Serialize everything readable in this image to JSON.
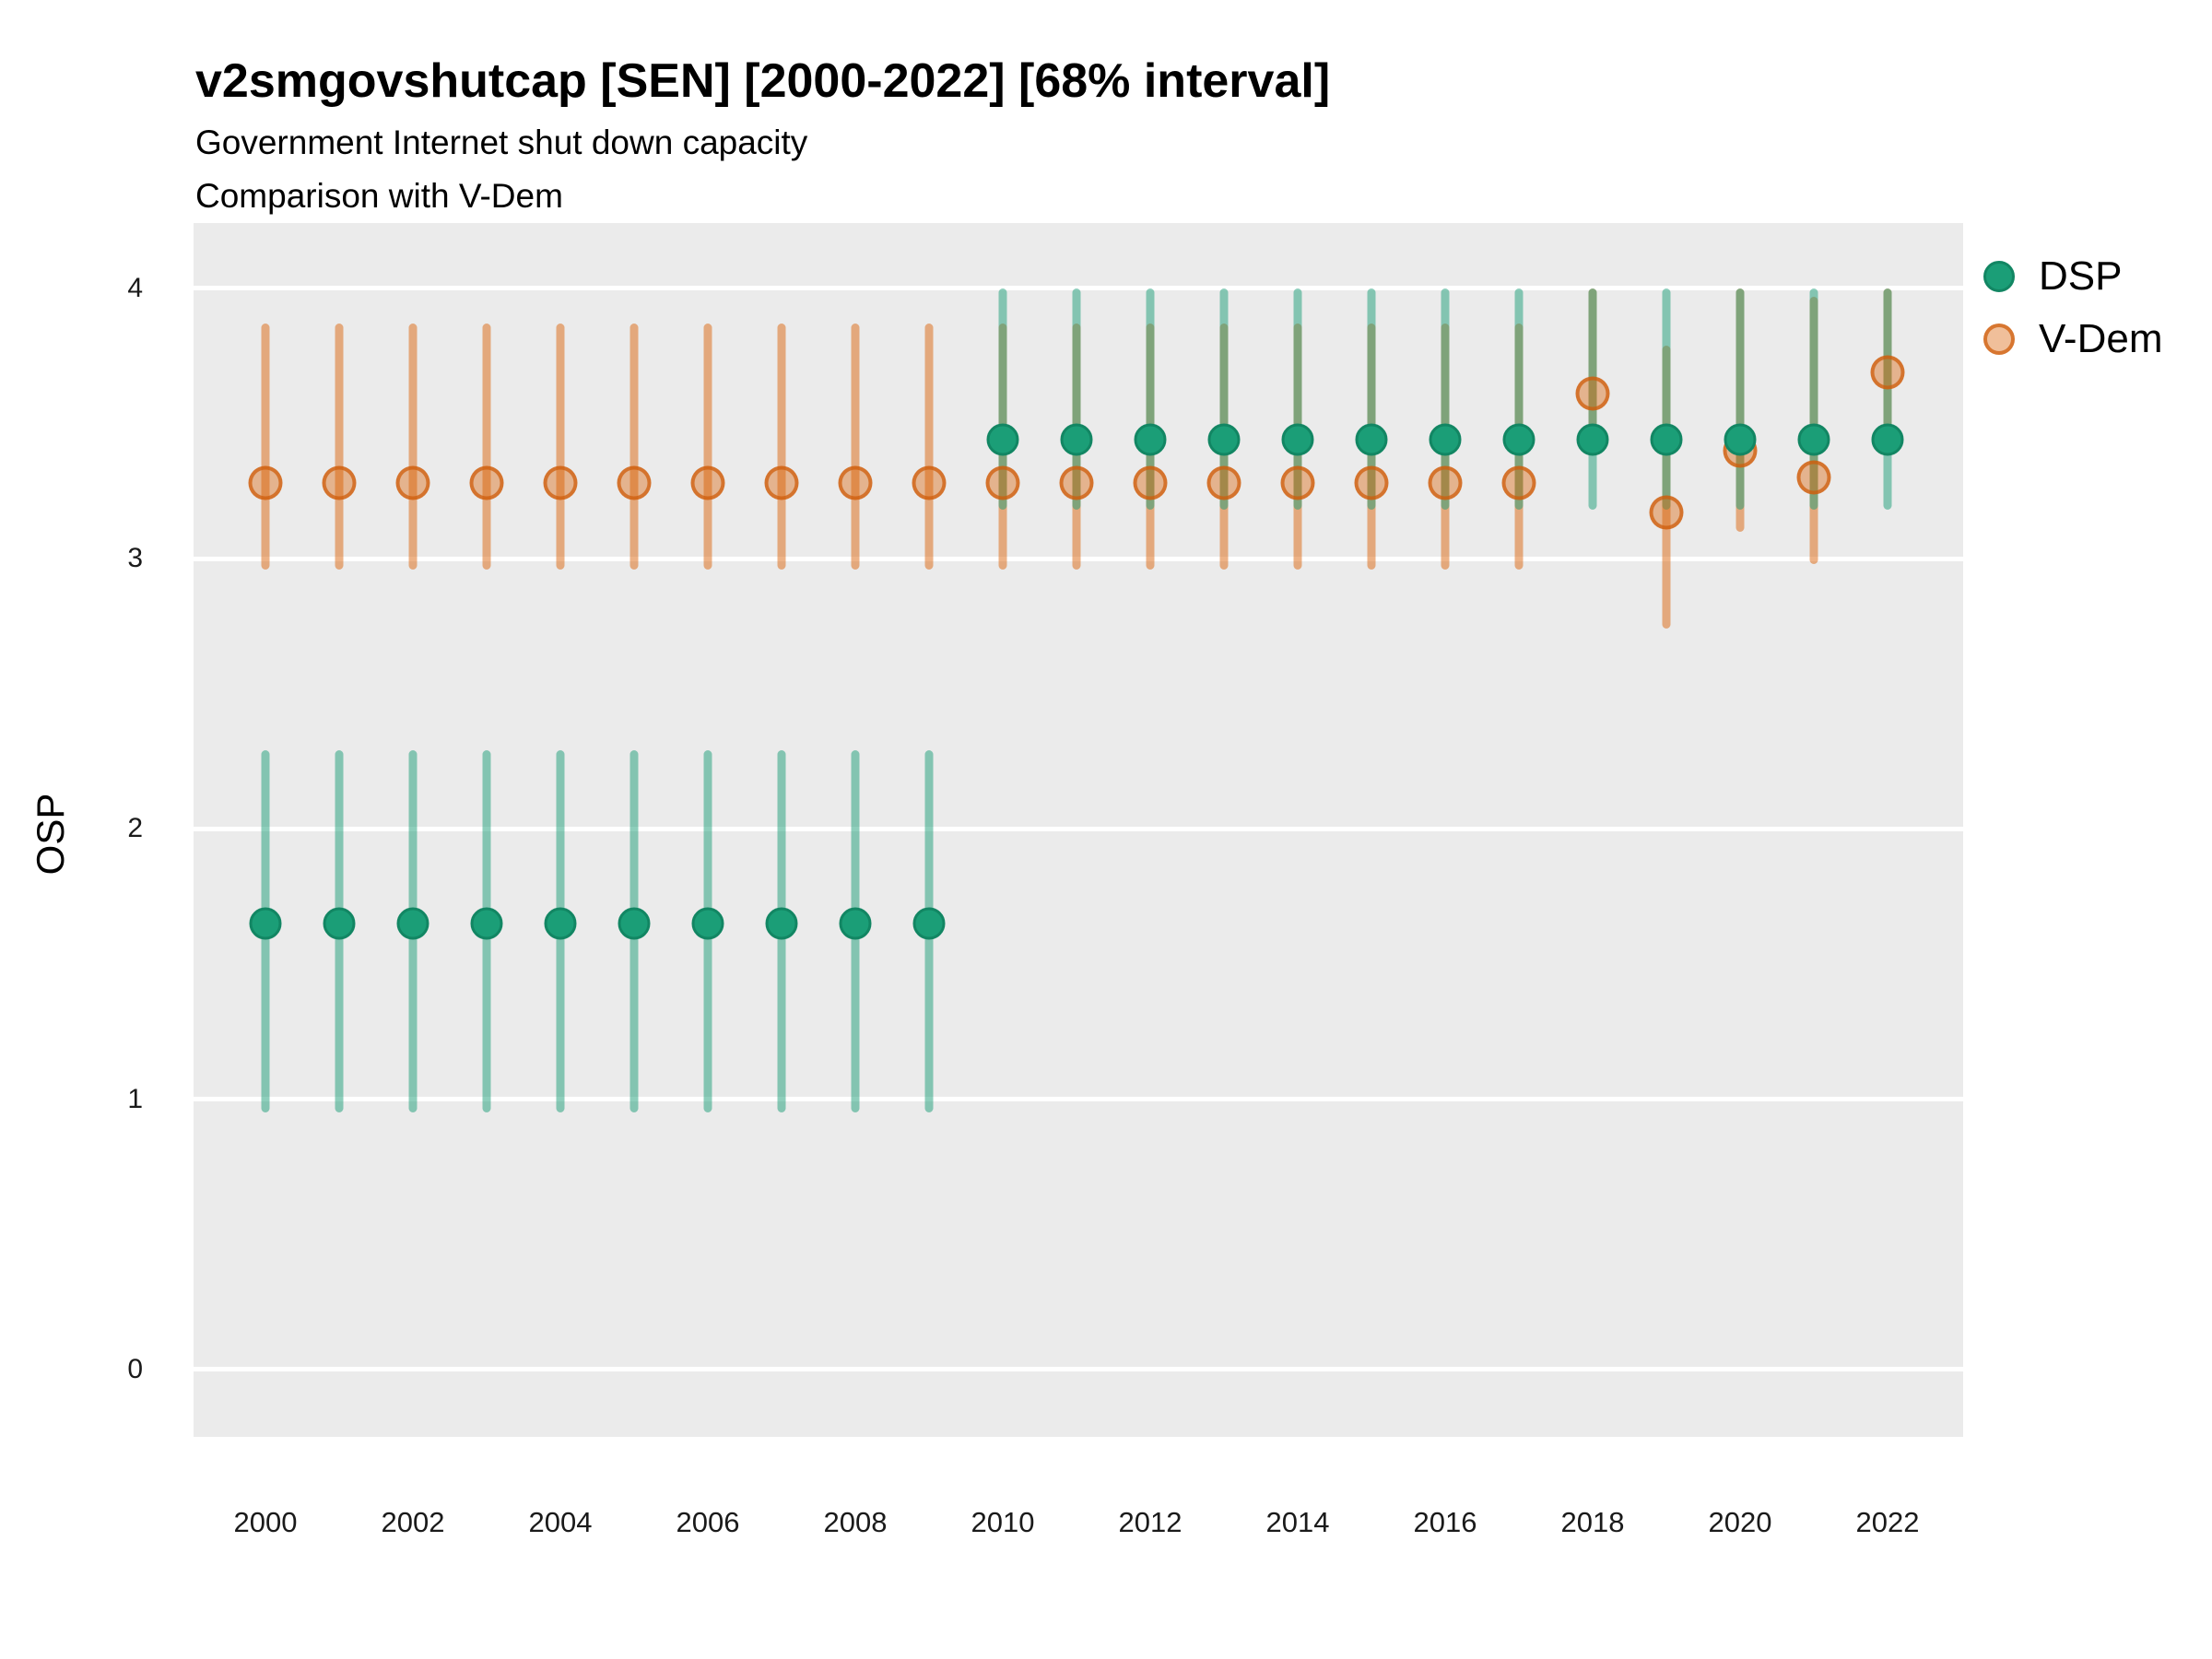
{
  "header": {
    "title": "v2smgovshutcap [SEN] [2000-2022] [68% interval]",
    "subtitle_line1": "Government Internet shut down capacity",
    "subtitle_line2": "Comparison with V-Dem"
  },
  "y_axis": {
    "title": "OSP",
    "ticks": [
      {
        "label": "0",
        "value": 0
      },
      {
        "label": "1",
        "value": 1
      },
      {
        "label": "2",
        "value": 2
      },
      {
        "label": "3",
        "value": 3
      },
      {
        "label": "4",
        "value": 4
      }
    ]
  },
  "x_axis": {
    "ticks": [
      {
        "label": "2000",
        "year": 2000
      },
      {
        "label": "2002",
        "year": 2002
      },
      {
        "label": "2004",
        "year": 2004
      },
      {
        "label": "2006",
        "year": 2006
      },
      {
        "label": "2008",
        "year": 2008
      },
      {
        "label": "2010",
        "year": 2010
      },
      {
        "label": "2012",
        "year": 2012
      },
      {
        "label": "2014",
        "year": 2014
      },
      {
        "label": "2016",
        "year": 2016
      },
      {
        "label": "2018",
        "year": 2018
      },
      {
        "label": "2020",
        "year": 2020
      },
      {
        "label": "2022",
        "year": 2022
      }
    ]
  },
  "legend": {
    "items": [
      {
        "label": "DSP",
        "color": "#1B9E77"
      },
      {
        "label": "V-Dem",
        "color": "#D95F02"
      }
    ],
    "position": "right-top"
  },
  "chart_data": {
    "type": "scatter",
    "title": "v2smgovshutcap [SEN] [2000-2022] [68% interval]",
    "subtitle": "Government Internet shut down capacity — Comparison with V-Dem",
    "interval": "68%",
    "xlabel": "",
    "ylabel": "OSP",
    "xlim": [
      1999,
      2023
    ],
    "ylim": [
      -0.25,
      4.24
    ],
    "grid": "major-horizontal-white",
    "background": "#EBEBEB",
    "legend_position": "right-top",
    "x": [
      2000,
      2001,
      2002,
      2003,
      2004,
      2005,
      2006,
      2007,
      2008,
      2009,
      2010,
      2011,
      2012,
      2013,
      2014,
      2015,
      2016,
      2017,
      2018,
      2019,
      2020,
      2021,
      2022
    ],
    "series": [
      {
        "name": "DSP",
        "color": "#1B9E77",
        "values": [
          1.65,
          1.65,
          1.65,
          1.65,
          1.65,
          1.65,
          1.65,
          1.65,
          1.65,
          1.65,
          3.44,
          3.44,
          3.44,
          3.44,
          3.44,
          3.44,
          3.44,
          3.44,
          3.44,
          3.44,
          3.44,
          3.44,
          3.44
        ],
        "lower": [
          0.95,
          0.95,
          0.95,
          0.95,
          0.95,
          0.95,
          0.95,
          0.95,
          0.95,
          0.95,
          3.18,
          3.18,
          3.18,
          3.18,
          3.18,
          3.18,
          3.18,
          3.18,
          3.18,
          3.18,
          3.18,
          3.18,
          3.18
        ],
        "upper": [
          2.29,
          2.29,
          2.29,
          2.29,
          2.29,
          2.29,
          2.29,
          2.29,
          2.29,
          2.29,
          4.0,
          4.0,
          4.0,
          4.0,
          4.0,
          4.0,
          4.0,
          4.0,
          4.0,
          4.0,
          4.0,
          4.0,
          4.0
        ]
      },
      {
        "name": "V-Dem",
        "color": "#D95F02",
        "values": [
          3.28,
          3.28,
          3.28,
          3.28,
          3.28,
          3.28,
          3.28,
          3.28,
          3.28,
          3.28,
          3.28,
          3.28,
          3.28,
          3.28,
          3.28,
          3.28,
          3.28,
          3.28,
          3.61,
          3.17,
          3.4,
          3.3,
          3.69
        ],
        "lower": [
          2.96,
          2.96,
          2.96,
          2.96,
          2.96,
          2.96,
          2.96,
          2.96,
          2.96,
          2.96,
          2.96,
          2.96,
          2.96,
          2.96,
          2.96,
          2.96,
          2.96,
          2.96,
          3.42,
          2.74,
          3.1,
          2.98,
          3.42
        ],
        "upper": [
          3.87,
          3.87,
          3.87,
          3.87,
          3.87,
          3.87,
          3.87,
          3.87,
          3.87,
          3.87,
          3.87,
          3.87,
          3.87,
          3.87,
          3.87,
          3.87,
          3.87,
          3.87,
          4.0,
          3.79,
          4.0,
          3.97,
          4.0
        ]
      }
    ]
  }
}
